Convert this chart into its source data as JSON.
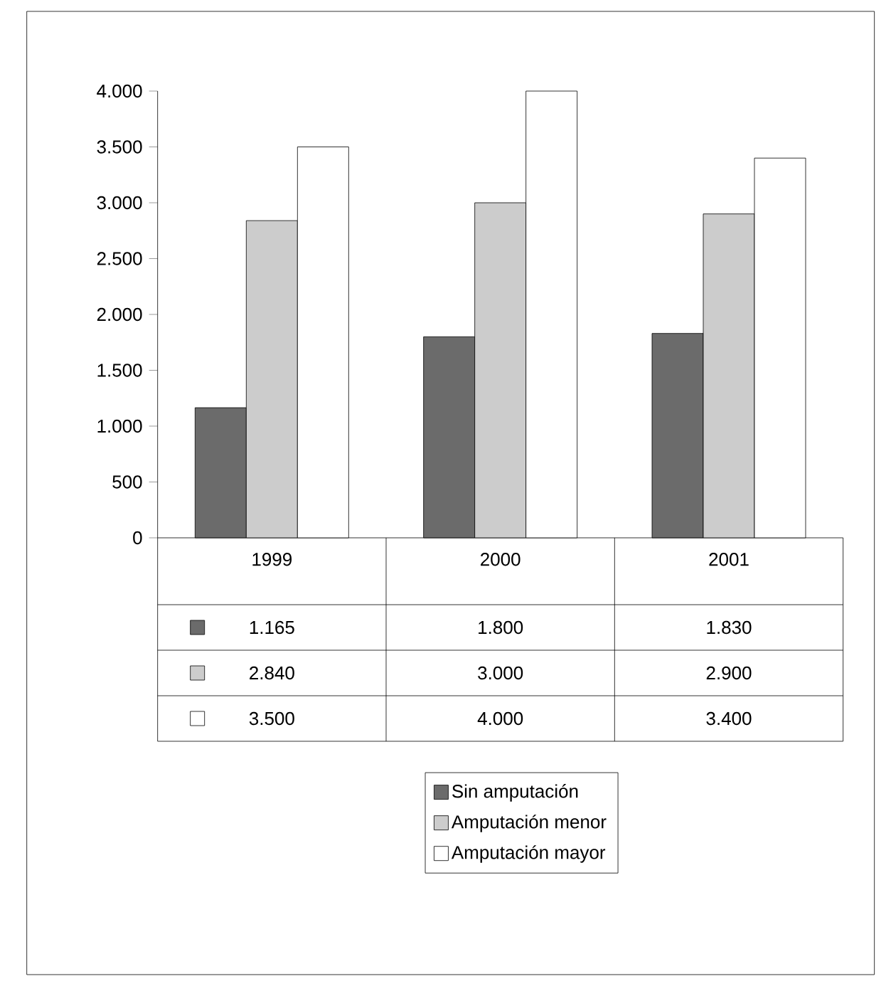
{
  "chart_data": {
    "type": "bar",
    "categories": [
      "1999",
      "2000",
      "2001"
    ],
    "series": [
      {
        "name": "Sin amputación",
        "color": "#6b6b6b",
        "values": [
          1165,
          1800,
          1830
        ],
        "value_labels": [
          "1.165",
          "1.800",
          "1.830"
        ]
      },
      {
        "name": "Amputación menor",
        "color": "#cccccc",
        "values": [
          2840,
          3000,
          2900
        ],
        "value_labels": [
          "2.840",
          "3.000",
          "2.900"
        ]
      },
      {
        "name": "Amputación mayor",
        "color": "#ffffff",
        "values": [
          3500,
          4000,
          3400
        ],
        "value_labels": [
          "3.500",
          "4.000",
          "3.400"
        ]
      }
    ],
    "ylim": [
      0,
      4000
    ],
    "yticks": [
      0,
      500,
      {
        "value": 1000,
        "label": "1.000"
      },
      {
        "value": 1500,
        "label": "1.500"
      },
      {
        "value": 2000,
        "label": "2.000"
      },
      {
        "value": 2500,
        "label": "2.500"
      },
      {
        "value": 3000,
        "label": "3.000"
      },
      {
        "value": 3500,
        "label": "3.500"
      },
      {
        "value": 4000,
        "label": "4.000"
      }
    ],
    "legend": "bottom",
    "grid": false
  }
}
